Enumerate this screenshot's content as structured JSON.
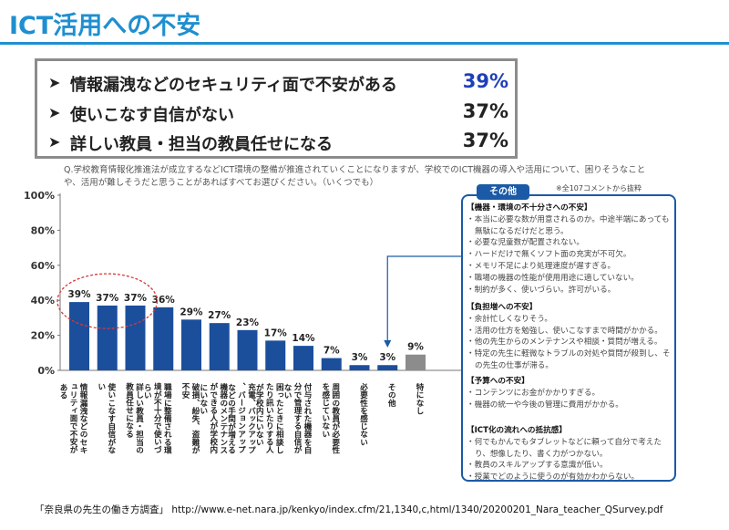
{
  "header": {
    "title": "ICT活用への不安"
  },
  "summary": [
    {
      "label": "情報漏洩などのセキュリティ面で不安がある",
      "value": "39%",
      "color": "#1f3fb8"
    },
    {
      "label": "使いこなす自信がない",
      "value": "37%",
      "color": "#222222"
    },
    {
      "label": "詳しい教員・担当の教員任せになる",
      "value": "37%",
      "color": "#222222"
    }
  ],
  "summary_arrow": "➤",
  "question": "Q.学校教育情報化推進法が成立するなどICT環境の整備が推進されていくことになりますが、学校でのICT機器の導入や活用について、困りそうなことや、活用が難しそうだと思うことがあればすべてお選びください。（いくつでも）",
  "note": "※全107コメントから抜粋",
  "chart_data": {
    "type": "bar",
    "categories": [
      "情報漏洩などのセキュリティ面で不安がある",
      "使いこなす自信がない",
      "詳しい教員・担当の教員任せになる",
      "職場に整備される環境が不十分で使いづらい",
      "破損、紛失、盗難が不安",
      "機器のメンテナンスができる人が学校内にいない",
      "充電、バックアップ、バージョンアップなどの手間が増える",
      "困ったときに相談したり訊いたりする人が学校内にいない",
      "付与された機器を自分で管理する自信がない",
      "周囲の教員が必要性を感じていない",
      "必要性を感じない",
      "その他",
      "特になし"
    ],
    "values": [
      39,
      37,
      37,
      36,
      29,
      27,
      23,
      17,
      14,
      7,
      3,
      3,
      9
    ],
    "value_labels": [
      "39%",
      "37%",
      "37%",
      "36%",
      "29%",
      "27%",
      "23%",
      "17%",
      "14%",
      "7%",
      "3%",
      "3%",
      "9%"
    ],
    "ylim": [
      0,
      100
    ],
    "yticks": [
      "0%",
      "20%",
      "40%",
      "60%",
      "80%",
      "100%"
    ],
    "colors": {
      "bar": "#1b4f9c",
      "last_bar": "#8c8c8c",
      "highlight_ellipse": "#d43a3a"
    },
    "highlighted_categories": [
      0,
      1,
      2
    ],
    "grid": false
  },
  "other_box": {
    "tab": "その他",
    "groups": [
      {
        "heading": "【機器・環境の不十分さへの不安】",
        "items": [
          "・本当に必要な数が用意されるのか。中途半端にあっても無駄になるだけだと思う。",
          "・必要な児童数が配置されない。",
          "・ハードだけで無くソフト面の充実が不可欠。",
          "・メモリ不足により処理速度が遅すぎる。",
          "・職場の機器の性能が使用用途に適していない。",
          "・制約が多く、使いづらい。許可がいる。"
        ]
      },
      {
        "heading": "【負担増への不安】",
        "items": [
          "・余計忙しくなりそう。",
          "・活用の仕方を勉強し、使いこなすまで時間がかかる。",
          "・他の先生からのメンテナンスや相談・質問が増える。",
          "・特定の先生に軽微なトラブルの対処や質問が殺到し、その先生の仕事が滞る。"
        ]
      },
      {
        "heading": "【予算への不安】",
        "items": [
          "・コンテンツにお金がかかりすぎる。",
          "・機器の統一や今後の管理に費用がかかる。"
        ]
      },
      {
        "heading": "【ICT化の流れへの抵抗感】",
        "items": [
          "・何でもかんでもタブレットなどに頼って自分で考えたり、想像したり、書く力がつかない。",
          "・教員のスキルアップする意識が低い。",
          "・授業でどのように使うのが有効かわからない。"
        ]
      }
    ]
  },
  "footer": "「奈良県の先生の働き方調査」 http://www.e-net.nara.jp/kenkyo/index.cfm/21,1340,c,html/1340/20200201_Nara_teacher_QSurvey.pdf"
}
